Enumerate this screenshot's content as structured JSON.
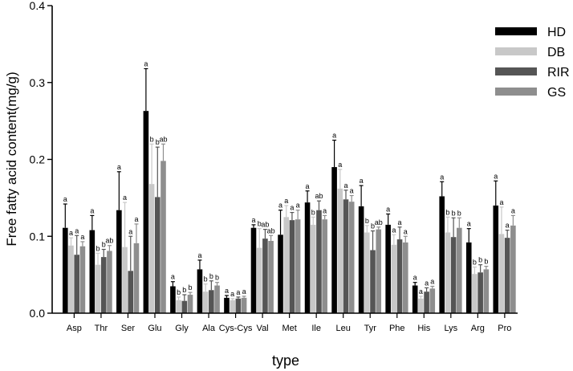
{
  "chart_data": {
    "type": "bar",
    "title": "",
    "xlabel": "type",
    "ylabel": "Free fatty acid content(mg/g)",
    "ylim": [
      0,
      0.4
    ],
    "yticks": [
      "0.0",
      "0.1",
      "0.2",
      "0.3",
      "0.4"
    ],
    "grid": false,
    "legend_position": "top-right",
    "categories": [
      "Asp",
      "Thr",
      "Ser",
      "Glu",
      "Gly",
      "Ala",
      "Cys-Cys",
      "Val",
      "Met",
      "Ile",
      "Leu",
      "Tyr",
      "Phe",
      "His",
      "Lys",
      "Arg",
      "Pro"
    ],
    "series": [
      {
        "name": "HD",
        "color": "#000000",
        "values": [
          0.111,
          0.108,
          0.134,
          0.263,
          0.035,
          0.057,
          0.02,
          0.111,
          0.102,
          0.144,
          0.19,
          0.139,
          0.115,
          0.036,
          0.152,
          0.092,
          0.14
        ],
        "errors": [
          0.031,
          0.019,
          0.05,
          0.055,
          0.006,
          0.012,
          0.003,
          0.004,
          0.032,
          0.015,
          0.035,
          0.027,
          0.014,
          0.004,
          0.019,
          0.018,
          0.032
        ],
        "letters": [
          "a",
          "a",
          "a",
          "a",
          "a",
          "a",
          "a",
          "a",
          "a",
          "a",
          "a",
          "a",
          "a",
          "a",
          "a",
          "a",
          "a"
        ]
      },
      {
        "name": "DB",
        "color": "#c8c8c8",
        "values": [
          0.088,
          0.063,
          0.086,
          0.168,
          0.017,
          0.028,
          0.017,
          0.085,
          0.125,
          0.115,
          0.162,
          0.105,
          0.089,
          0.019,
          0.105,
          0.051,
          0.103
        ],
        "errors": [
          0.01,
          0.015,
          0.058,
          0.052,
          0.004,
          0.01,
          0.002,
          0.025,
          0.015,
          0.01,
          0.025,
          0.009,
          0.013,
          0.003,
          0.02,
          0.009,
          0.035
        ],
        "letters": [
          "a",
          "b",
          "a",
          "b",
          "b",
          "b",
          "a",
          "b",
          "a",
          "b",
          "a",
          "b",
          "a",
          "a",
          "b",
          "b",
          "a"
        ]
      },
      {
        "name": "RIR",
        "color": "#555555",
        "values": [
          0.076,
          0.073,
          0.055,
          0.151,
          0.016,
          0.03,
          0.019,
          0.097,
          0.121,
          0.134,
          0.148,
          0.082,
          0.096,
          0.028,
          0.099,
          0.053,
          0.098
        ],
        "errors": [
          0.025,
          0.01,
          0.045,
          0.065,
          0.008,
          0.012,
          0.002,
          0.012,
          0.01,
          0.012,
          0.012,
          0.025,
          0.016,
          0.005,
          0.025,
          0.01,
          0.01
        ],
        "letters": [
          "a",
          "b",
          "a",
          "b",
          "b",
          "b",
          "a",
          "ab",
          "a",
          "ab",
          "a",
          "b",
          "a",
          "a",
          "b",
          "b",
          "a"
        ]
      },
      {
        "name": "GS",
        "color": "#8e8e8e",
        "values": [
          0.087,
          0.081,
          0.091,
          0.198,
          0.024,
          0.036,
          0.02,
          0.094,
          0.122,
          0.122,
          0.145,
          0.109,
          0.092,
          0.032,
          0.111,
          0.057,
          0.114
        ],
        "errors": [
          0.006,
          0.007,
          0.025,
          0.022,
          0.003,
          0.004,
          0.002,
          0.007,
          0.012,
          0.005,
          0.008,
          0.003,
          0.008,
          0.003,
          0.013,
          0.004,
          0.013
        ],
        "letters": [
          "a",
          "ab",
          "a",
          "ab",
          "b",
          "b",
          "a",
          "ab",
          "a",
          "a",
          "a",
          "ab",
          "a",
          "a",
          "b",
          "b",
          "a"
        ]
      }
    ]
  }
}
